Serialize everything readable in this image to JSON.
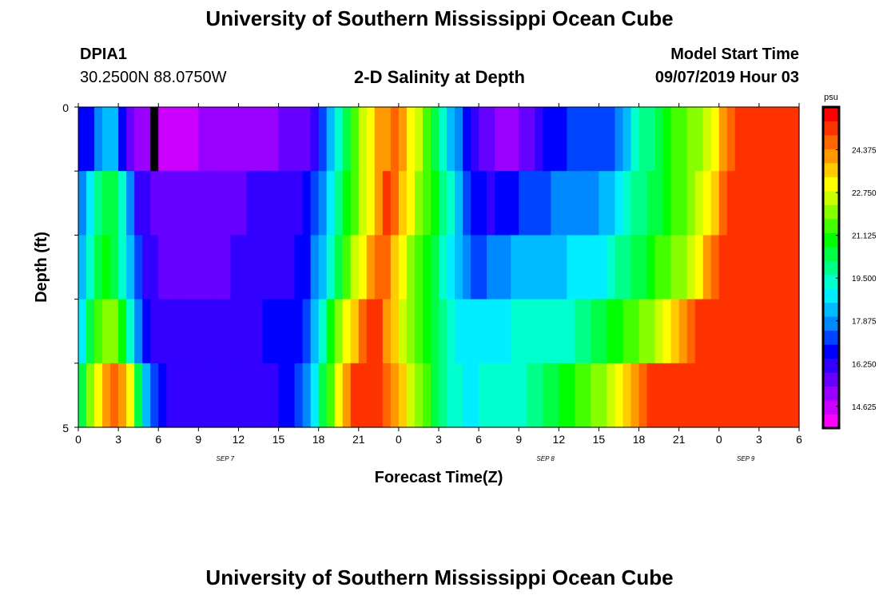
{
  "header": {
    "title": "University of Southern Mississippi Ocean Cube",
    "station_id": "DPIA1",
    "station_coords": "30.2500N 88.0750W",
    "plot_title": "2-D Salinity at Depth",
    "model_start_label": "Model Start Time",
    "model_start_value": "09/07/2019 Hour 03"
  },
  "footer": {
    "title": "University of Southern Mississippi Ocean Cube"
  },
  "chart_data": {
    "type": "heatmap",
    "title": "2-D Salinity at Depth",
    "xlabel": "Forecast Time(Z)",
    "ylabel": "Depth (ft)",
    "x_tick_labels": [
      "0",
      "3",
      "6",
      "9",
      "12",
      "15",
      "18",
      "21",
      "0",
      "3",
      "6",
      "9",
      "12",
      "15",
      "18",
      "21",
      "0",
      "3",
      "6"
    ],
    "date_labels": [
      {
        "text": "SEP 7",
        "at_hour": 11
      },
      {
        "text": "SEP 8",
        "at_hour": 35
      },
      {
        "text": "SEP 9",
        "at_hour": 50
      }
    ],
    "x_range_hours": [
      0,
      54
    ],
    "y_tick_labels": [
      "0",
      "5"
    ],
    "y_range": [
      0,
      5
    ],
    "colorbar": {
      "unit": "psu",
      "min": 13.8,
      "max": 26.0,
      "tick_values": [
        "24.375",
        "22.750",
        "21.125",
        "19.500",
        "17.875",
        "16.250",
        "14.625"
      ],
      "colors": [
        "#ff00ff",
        "#cc00ff",
        "#9900ff",
        "#6600ff",
        "#3300ff",
        "#0000ff",
        "#0044ff",
        "#0088ff",
        "#00bbff",
        "#00eeff",
        "#00ffcc",
        "#00ff88",
        "#00ff44",
        "#00ff00",
        "#44ff00",
        "#88ff00",
        "#ccff00",
        "#ffff00",
        "#ffcc00",
        "#ff9900",
        "#ff6600",
        "#ff3300",
        "#ff0000"
      ]
    },
    "depth_rows": 5,
    "hours_per_step": 1,
    "rows": [
      {
        "depth": "0-1",
        "values": [
          16.3,
          16.8,
          17.6,
          18.2,
          18.4,
          16.8,
          15.2,
          14.7,
          14.9,
          null,
          14.2,
          14.3,
          14.4,
          14.5,
          14.6,
          14.8,
          14.9,
          15.0,
          15.1,
          15.0,
          15.0,
          15.1,
          15.1,
          15.1,
          15.1,
          15.2,
          15.2,
          15.2,
          15.5,
          16.1,
          16.9,
          18.0,
          19.5,
          20.5,
          21.5,
          22.5,
          23.5,
          24.1,
          24.5,
          25.0,
          24.3,
          23.5,
          22.4,
          21.4,
          20.5,
          19.2,
          18.5,
          17.5,
          16.3,
          16.0,
          15.5,
          15.2,
          15.0,
          14.9,
          15.0,
          15.2,
          15.5,
          15.9,
          16.3,
          16.6,
          16.8,
          16.9,
          17.0,
          17.1,
          17.2,
          17.2,
          17.3,
          17.5,
          18.2,
          19.1,
          19.7,
          20.1,
          20.5,
          20.9,
          21.3,
          21.6,
          21.9,
          22.3,
          22.7,
          23.5,
          24.3,
          25.0,
          25.3,
          25.5,
          25.6,
          25.6,
          25.7,
          25.6,
          25.5,
          25.5
        ]
      },
      {
        "depth": "1-2",
        "values": [
          17.5,
          18.7,
          19.8,
          20.2,
          20.4,
          19.2,
          17.5,
          16.2,
          15.8,
          15.5,
          15.4,
          15.3,
          15.3,
          15.3,
          15.4,
          15.4,
          15.5,
          15.5,
          15.6,
          15.7,
          15.7,
          15.8,
          15.8,
          15.8,
          15.9,
          15.9,
          16.0,
          16.1,
          16.4,
          16.9,
          17.8,
          18.7,
          19.8,
          20.8,
          21.8,
          22.8,
          23.5,
          24.5,
          25.2,
          25.0,
          24.0,
          23.2,
          22.3,
          21.5,
          20.8,
          20.1,
          19.5,
          18.4,
          17.2,
          16.7,
          16.3,
          16.2,
          16.3,
          16.5,
          16.8,
          17.0,
          17.2,
          17.3,
          17.4,
          17.5,
          17.5,
          17.6,
          17.7,
          17.8,
          17.9,
          18.0,
          18.3,
          18.8,
          19.4,
          19.8,
          20.1,
          20.4,
          20.7,
          21.0,
          21.3,
          21.6,
          22.0,
          22.4,
          23.1,
          23.9,
          24.7,
          25.2,
          25.4,
          25.5,
          25.6,
          25.7,
          25.7,
          25.6,
          25.6,
          25.5
        ]
      },
      {
        "depth": "2-3",
        "values": [
          18.2,
          19.5,
          20.5,
          20.8,
          20.4,
          19.5,
          18.5,
          17.0,
          16.2,
          15.9,
          15.7,
          15.6,
          15.6,
          15.6,
          15.6,
          15.6,
          15.7,
          15.7,
          15.7,
          15.8,
          15.8,
          15.9,
          15.9,
          16.0,
          16.0,
          16.1,
          16.2,
          16.4,
          16.8,
          17.5,
          18.4,
          19.4,
          20.5,
          21.5,
          22.5,
          23.5,
          24.5,
          25.0,
          24.8,
          24.0,
          23.0,
          22.3,
          21.6,
          20.8,
          20.2,
          19.5,
          18.8,
          18.0,
          17.6,
          17.4,
          17.4,
          17.5,
          17.7,
          17.9,
          18.0,
          18.1,
          18.2,
          18.3,
          18.3,
          18.4,
          18.5,
          18.6,
          18.7,
          18.8,
          18.9,
          19.0,
          19.4,
          19.8,
          20.1,
          20.4,
          20.7,
          21.0,
          21.3,
          21.6,
          21.9,
          22.3,
          22.8,
          23.5,
          24.2,
          24.9,
          25.3,
          25.5,
          25.6,
          25.7,
          25.7,
          25.7,
          25.6,
          25.6,
          25.5,
          25.5
        ]
      },
      {
        "depth": "3-4",
        "values": [
          19.0,
          20.6,
          21.8,
          22.3,
          22.0,
          21.0,
          19.5,
          17.5,
          16.5,
          16.2,
          16.0,
          15.9,
          15.9,
          15.9,
          15.9,
          15.9,
          16.0,
          16.0,
          16.1,
          16.1,
          16.1,
          16.2,
          16.2,
          16.3,
          16.3,
          16.4,
          16.5,
          16.8,
          17.4,
          18.3,
          19.5,
          20.8,
          22.0,
          23.0,
          24.0,
          24.8,
          25.3,
          25.2,
          24.5,
          23.6,
          22.8,
          22.0,
          21.3,
          20.8,
          20.3,
          19.8,
          19.3,
          18.9,
          18.7,
          18.7,
          18.8,
          18.9,
          19.0,
          19.0,
          19.1,
          19.2,
          19.2,
          19.3,
          19.3,
          19.4,
          19.5,
          19.6,
          19.8,
          20.0,
          20.2,
          20.5,
          20.8,
          21.1,
          21.4,
          21.7,
          22.0,
          22.3,
          22.7,
          23.2,
          23.8,
          24.5,
          25.0,
          25.3,
          25.5,
          25.6,
          25.7,
          25.7,
          25.7,
          25.6,
          25.6,
          25.5,
          25.5,
          25.5,
          25.5,
          25.5
        ]
      },
      {
        "depth": "4-5",
        "values": [
          20.5,
          22.0,
          23.5,
          24.3,
          24.8,
          24.5,
          23.0,
          20.5,
          18.5,
          17.0,
          16.3,
          16.0,
          15.8,
          15.8,
          15.8,
          15.8,
          15.8,
          15.9,
          15.9,
          15.9,
          16.0,
          16.0,
          16.0,
          16.1,
          16.2,
          16.3,
          16.5,
          16.9,
          17.6,
          18.8,
          20.2,
          21.8,
          23.3,
          24.6,
          25.4,
          25.6,
          25.5,
          25.3,
          25.0,
          24.5,
          23.7,
          22.8,
          22.0,
          21.3,
          20.6,
          20.0,
          19.5,
          19.2,
          19.0,
          19.0,
          19.1,
          19.2,
          19.3,
          19.4,
          19.5,
          19.6,
          19.8,
          20.0,
          20.3,
          20.6,
          20.9,
          21.1,
          21.3,
          21.6,
          21.9,
          22.2,
          22.6,
          23.0,
          23.6,
          24.3,
          24.9,
          25.3,
          25.5,
          25.6,
          25.7,
          25.7,
          25.7,
          25.7,
          25.6,
          25.6,
          25.5,
          25.5,
          25.5,
          25.5,
          25.5,
          25.5,
          25.5,
          25.5,
          25.5,
          25.5
        ]
      }
    ]
  }
}
